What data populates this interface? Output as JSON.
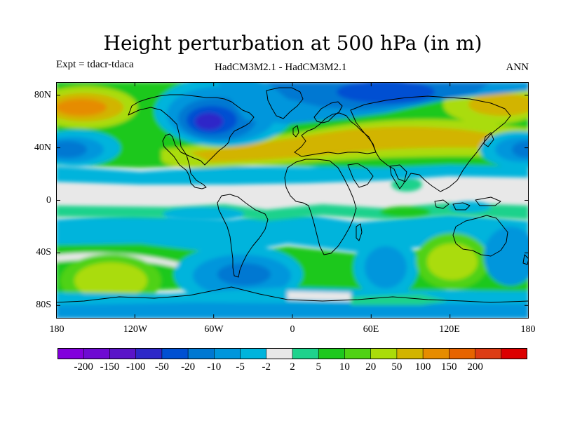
{
  "title": "Height perturbation at 500 hPa (in m)",
  "left_subtitle": "Expt = tdacr-tdaca",
  "center_subtitle": "HadCM3M2.1 - HadCM3M2.1",
  "right_subtitle": "ANN",
  "y_ticks": [
    "80N",
    "40N",
    "0",
    "40S",
    "80S"
  ],
  "x_ticks": [
    "180",
    "120W",
    "60W",
    "0",
    "60E",
    "120E",
    "180"
  ],
  "colorbar": {
    "labels": [
      "-200",
      "-150",
      "-100",
      "-50",
      "-20",
      "-10",
      "-5",
      "-2",
      "2",
      "5",
      "10",
      "20",
      "50",
      "100",
      "150",
      "200"
    ],
    "colors": [
      "#8200dc",
      "#6e0ad2",
      "#5a14c8",
      "#2d28c8",
      "#0050d2",
      "#0078d2",
      "#0096dc",
      "#00b4dc",
      "#e8e8e8",
      "#1ed28c",
      "#1ec81e",
      "#50d214",
      "#aadc0a",
      "#d2b400",
      "#e68c00",
      "#e66400",
      "#dc3c14",
      "#dc0000"
    ]
  },
  "map_extent": {
    "lon_min": -180,
    "lon_max": 180,
    "lat_min": -90,
    "lat_max": 90
  }
}
